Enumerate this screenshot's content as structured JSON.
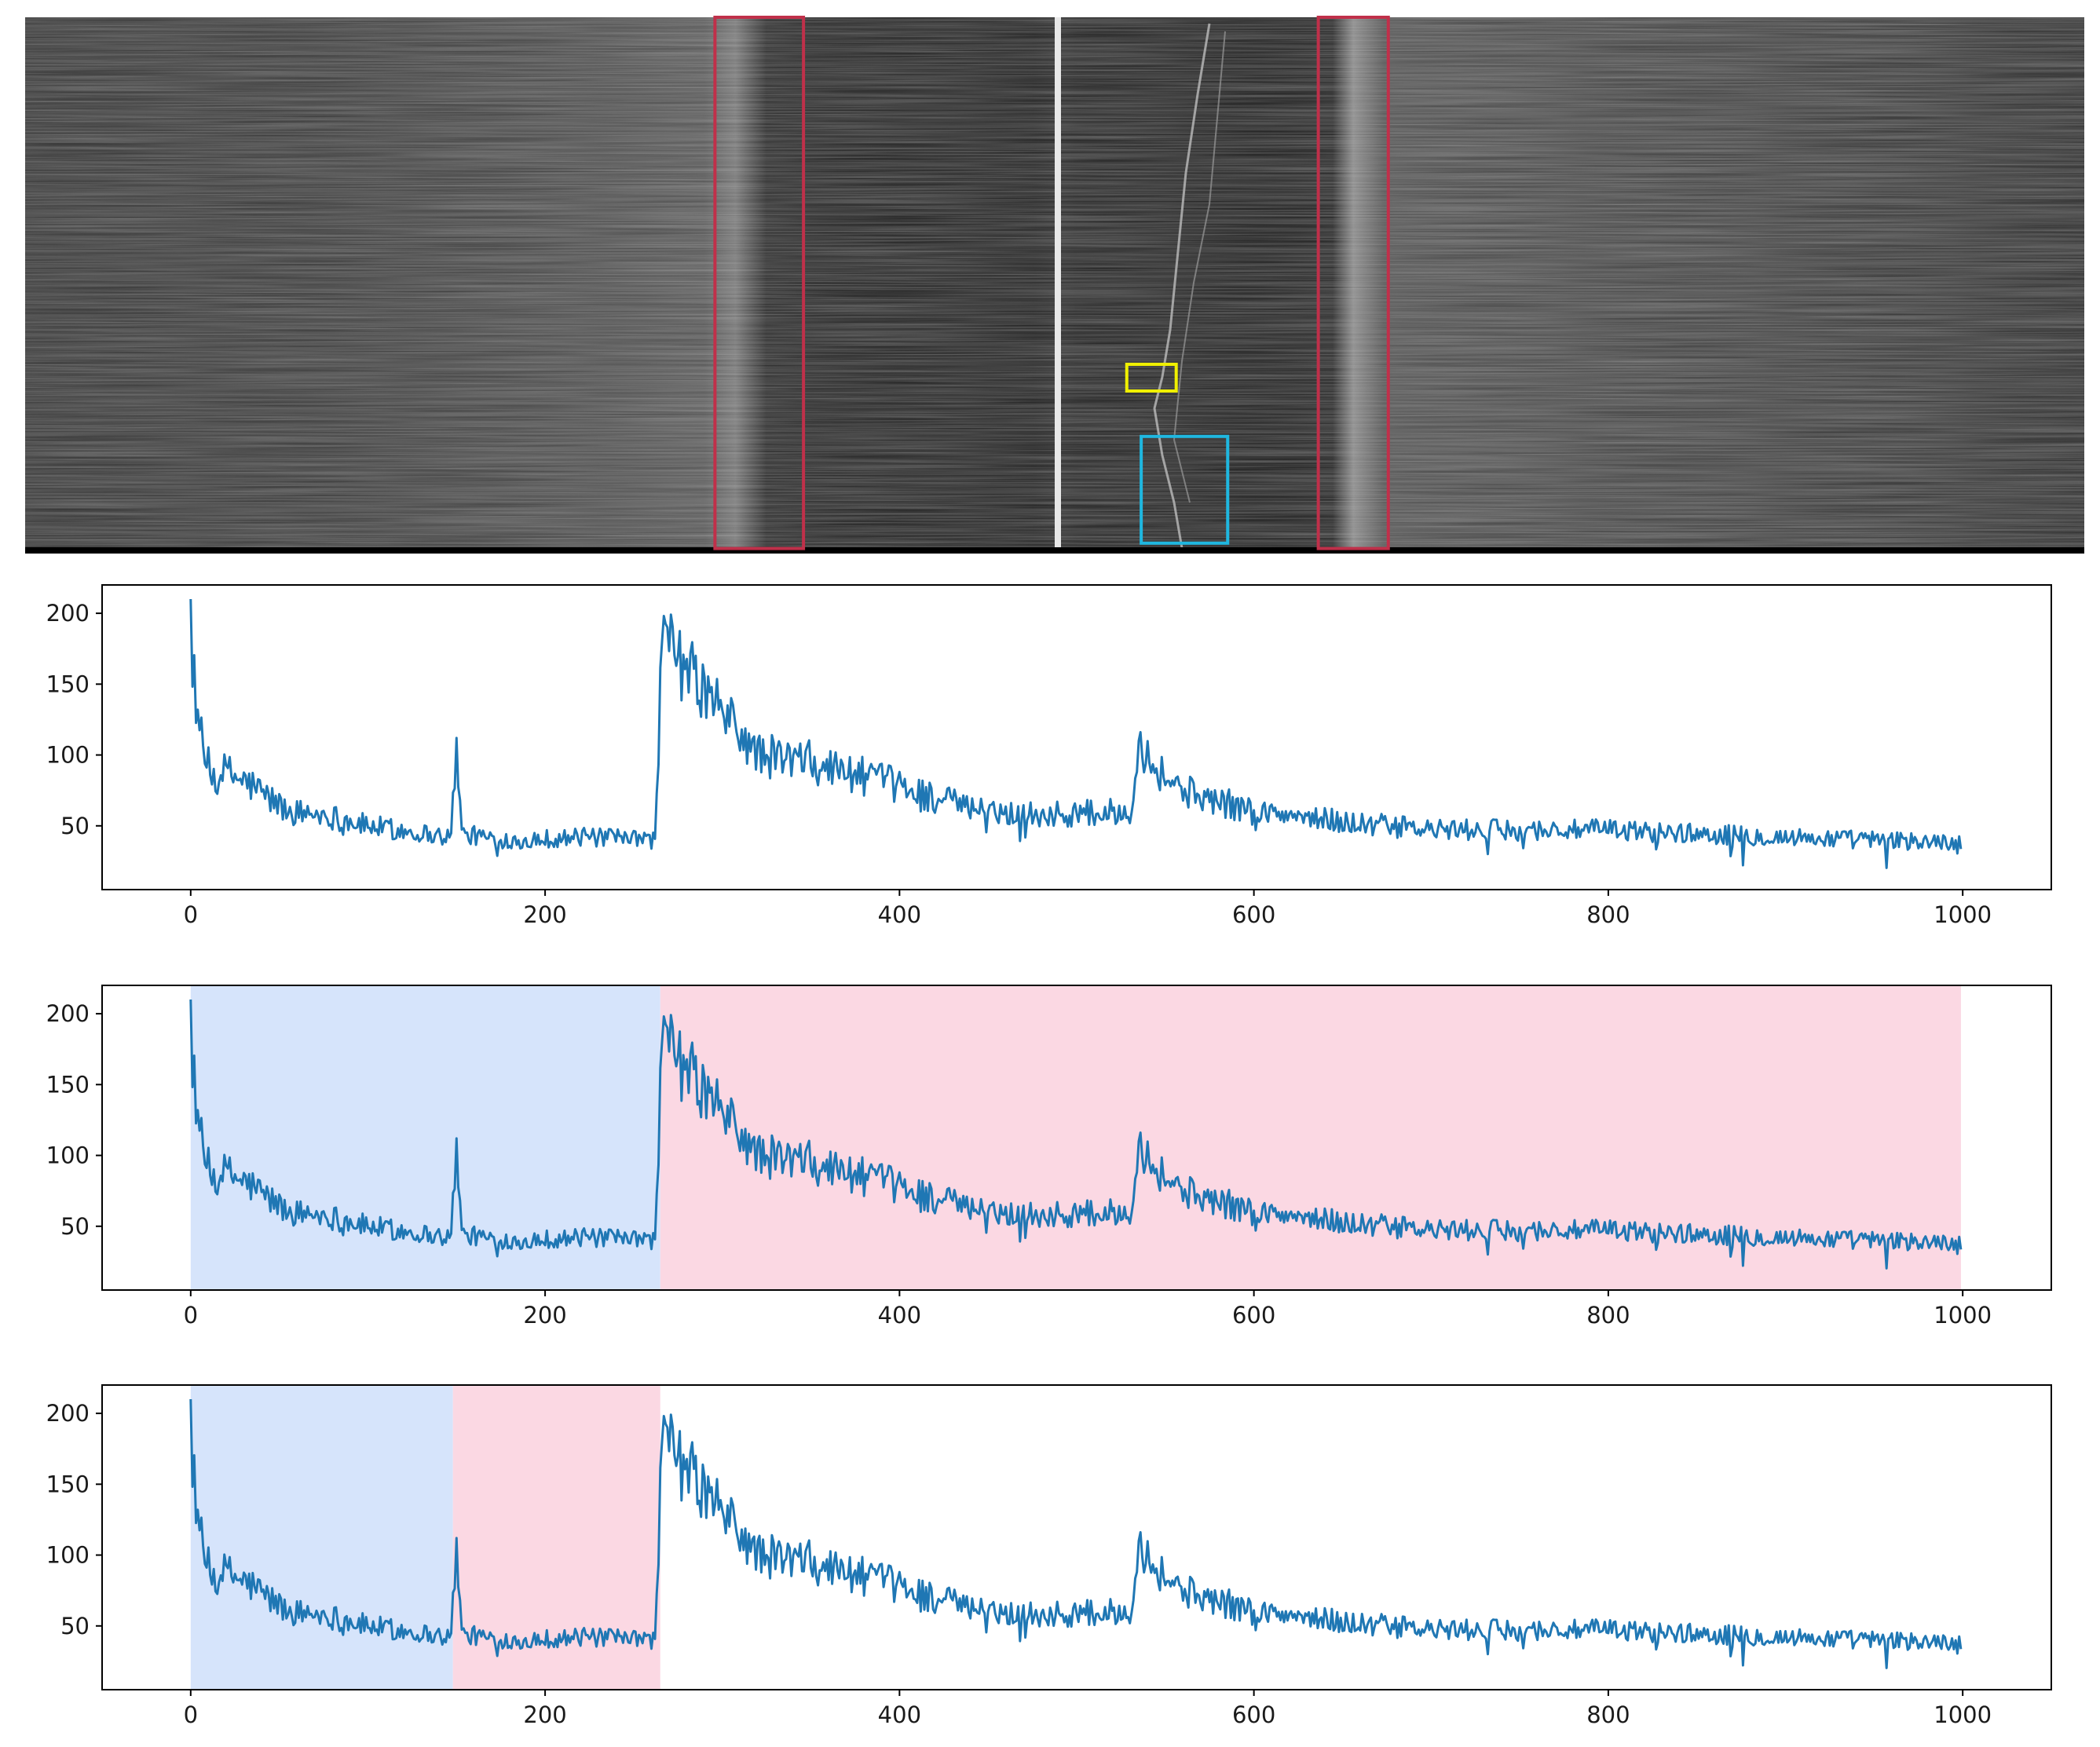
{
  "figure": {
    "sonar_image": {
      "type": "grayscale-waterfall",
      "annotation_boxes": [
        {
          "name": "left-seabed-return",
          "color": "#c0304a",
          "x_range": [
            0.335,
            0.378
          ],
          "y_range": [
            0.0,
            0.995
          ]
        },
        {
          "name": "right-seabed-return",
          "color": "#c0304a",
          "x_range": [
            0.628,
            0.662
          ],
          "y_range": [
            0.0,
            0.995
          ]
        },
        {
          "name": "target-small",
          "color": "#f0f000",
          "x_range": [
            0.535,
            0.559
          ],
          "y_range": [
            0.65,
            0.7
          ]
        },
        {
          "name": "target-large",
          "color": "#1fb7e0",
          "x_range": [
            0.542,
            0.584
          ],
          "y_range": [
            0.785,
            0.985
          ]
        }
      ]
    },
    "line_color": "#1f77b4",
    "region_colors": {
      "blue": "#d6e4fb",
      "pink": "#fbd8e3"
    }
  },
  "chart_data": [
    {
      "type": "line",
      "panel": "top",
      "x_range": [
        0,
        999
      ],
      "ylim": [
        5,
        220
      ],
      "xlim": [
        -50,
        1050
      ],
      "xticks": [
        0,
        200,
        400,
        600,
        800,
        1000
      ],
      "yticks": [
        50,
        100,
        150,
        200
      ],
      "xtick_labels": [
        "0",
        "200",
        "400",
        "600",
        "800",
        "1000"
      ],
      "ytick_labels": [
        "50",
        "100",
        "150",
        "200"
      ],
      "envelope": [
        [
          0,
          210
        ],
        [
          3,
          140
        ],
        [
          7,
          100
        ],
        [
          12,
          85
        ],
        [
          20,
          88
        ],
        [
          35,
          78
        ],
        [
          55,
          60
        ],
        [
          75,
          58
        ],
        [
          100,
          50
        ],
        [
          130,
          45
        ],
        [
          147,
          42
        ],
        [
          150,
          112
        ],
        [
          153,
          44
        ],
        [
          180,
          40
        ],
        [
          220,
          42
        ],
        [
          262,
          40
        ],
        [
          266,
          180
        ],
        [
          280,
          160
        ],
        [
          300,
          130
        ],
        [
          320,
          100
        ],
        [
          350,
          95
        ],
        [
          400,
          78
        ],
        [
          440,
          62
        ],
        [
          480,
          58
        ],
        [
          530,
          60
        ],
        [
          535,
          110
        ],
        [
          545,
          90
        ],
        [
          560,
          75
        ],
        [
          600,
          60
        ],
        [
          650,
          53
        ],
        [
          700,
          47
        ],
        [
          800,
          47
        ],
        [
          900,
          42
        ],
        [
          1000,
          38
        ]
      ],
      "regions": []
    },
    {
      "type": "line",
      "panel": "middle",
      "x_range": [
        0,
        999
      ],
      "ylim": [
        5,
        220
      ],
      "xlim": [
        -50,
        1050
      ],
      "xticks": [
        0,
        200,
        400,
        600,
        800,
        1000
      ],
      "yticks": [
        50,
        100,
        150,
        200
      ],
      "xtick_labels": [
        "0",
        "200",
        "400",
        "600",
        "800",
        "1000"
      ],
      "ytick_labels": [
        "50",
        "100",
        "150",
        "200"
      ],
      "envelope": [
        [
          0,
          210
        ],
        [
          3,
          140
        ],
        [
          7,
          100
        ],
        [
          12,
          85
        ],
        [
          20,
          88
        ],
        [
          35,
          78
        ],
        [
          55,
          60
        ],
        [
          75,
          58
        ],
        [
          100,
          50
        ],
        [
          130,
          45
        ],
        [
          147,
          42
        ],
        [
          150,
          112
        ],
        [
          153,
          44
        ],
        [
          180,
          40
        ],
        [
          220,
          42
        ],
        [
          262,
          40
        ],
        [
          266,
          180
        ],
        [
          280,
          160
        ],
        [
          300,
          130
        ],
        [
          320,
          100
        ],
        [
          350,
          95
        ],
        [
          400,
          78
        ],
        [
          440,
          62
        ],
        [
          480,
          58
        ],
        [
          530,
          60
        ],
        [
          535,
          110
        ],
        [
          545,
          90
        ],
        [
          560,
          75
        ],
        [
          600,
          60
        ],
        [
          650,
          53
        ],
        [
          700,
          47
        ],
        [
          800,
          47
        ],
        [
          900,
          42
        ],
        [
          1000,
          38
        ]
      ],
      "regions": [
        {
          "x0": 0,
          "x1": 265,
          "color": "blue"
        },
        {
          "x0": 265,
          "x1": 999,
          "color": "pink"
        }
      ]
    },
    {
      "type": "line",
      "panel": "bottom",
      "x_range": [
        0,
        999
      ],
      "ylim": [
        5,
        220
      ],
      "xlim": [
        -50,
        1050
      ],
      "xticks": [
        0,
        200,
        400,
        600,
        800,
        1000
      ],
      "yticks": [
        50,
        100,
        150,
        200
      ],
      "xtick_labels": [
        "0",
        "200",
        "400",
        "600",
        "800",
        "1000"
      ],
      "ytick_labels": [
        "50",
        "100",
        "150",
        "200"
      ],
      "envelope": [
        [
          0,
          210
        ],
        [
          3,
          140
        ],
        [
          7,
          100
        ],
        [
          12,
          85
        ],
        [
          20,
          88
        ],
        [
          35,
          78
        ],
        [
          55,
          60
        ],
        [
          75,
          58
        ],
        [
          100,
          50
        ],
        [
          130,
          45
        ],
        [
          147,
          42
        ],
        [
          150,
          112
        ],
        [
          153,
          44
        ],
        [
          180,
          40
        ],
        [
          220,
          42
        ],
        [
          262,
          40
        ],
        [
          266,
          180
        ],
        [
          280,
          160
        ],
        [
          300,
          130
        ],
        [
          320,
          100
        ],
        [
          350,
          95
        ],
        [
          400,
          78
        ],
        [
          440,
          62
        ],
        [
          480,
          58
        ],
        [
          530,
          60
        ],
        [
          535,
          110
        ],
        [
          545,
          90
        ],
        [
          560,
          75
        ],
        [
          600,
          60
        ],
        [
          650,
          53
        ],
        [
          700,
          47
        ],
        [
          800,
          47
        ],
        [
          900,
          42
        ],
        [
          1000,
          38
        ]
      ],
      "regions": [
        {
          "x0": 0,
          "x1": 148,
          "color": "blue"
        },
        {
          "x0": 148,
          "x1": 265,
          "color": "pink"
        }
      ]
    }
  ]
}
